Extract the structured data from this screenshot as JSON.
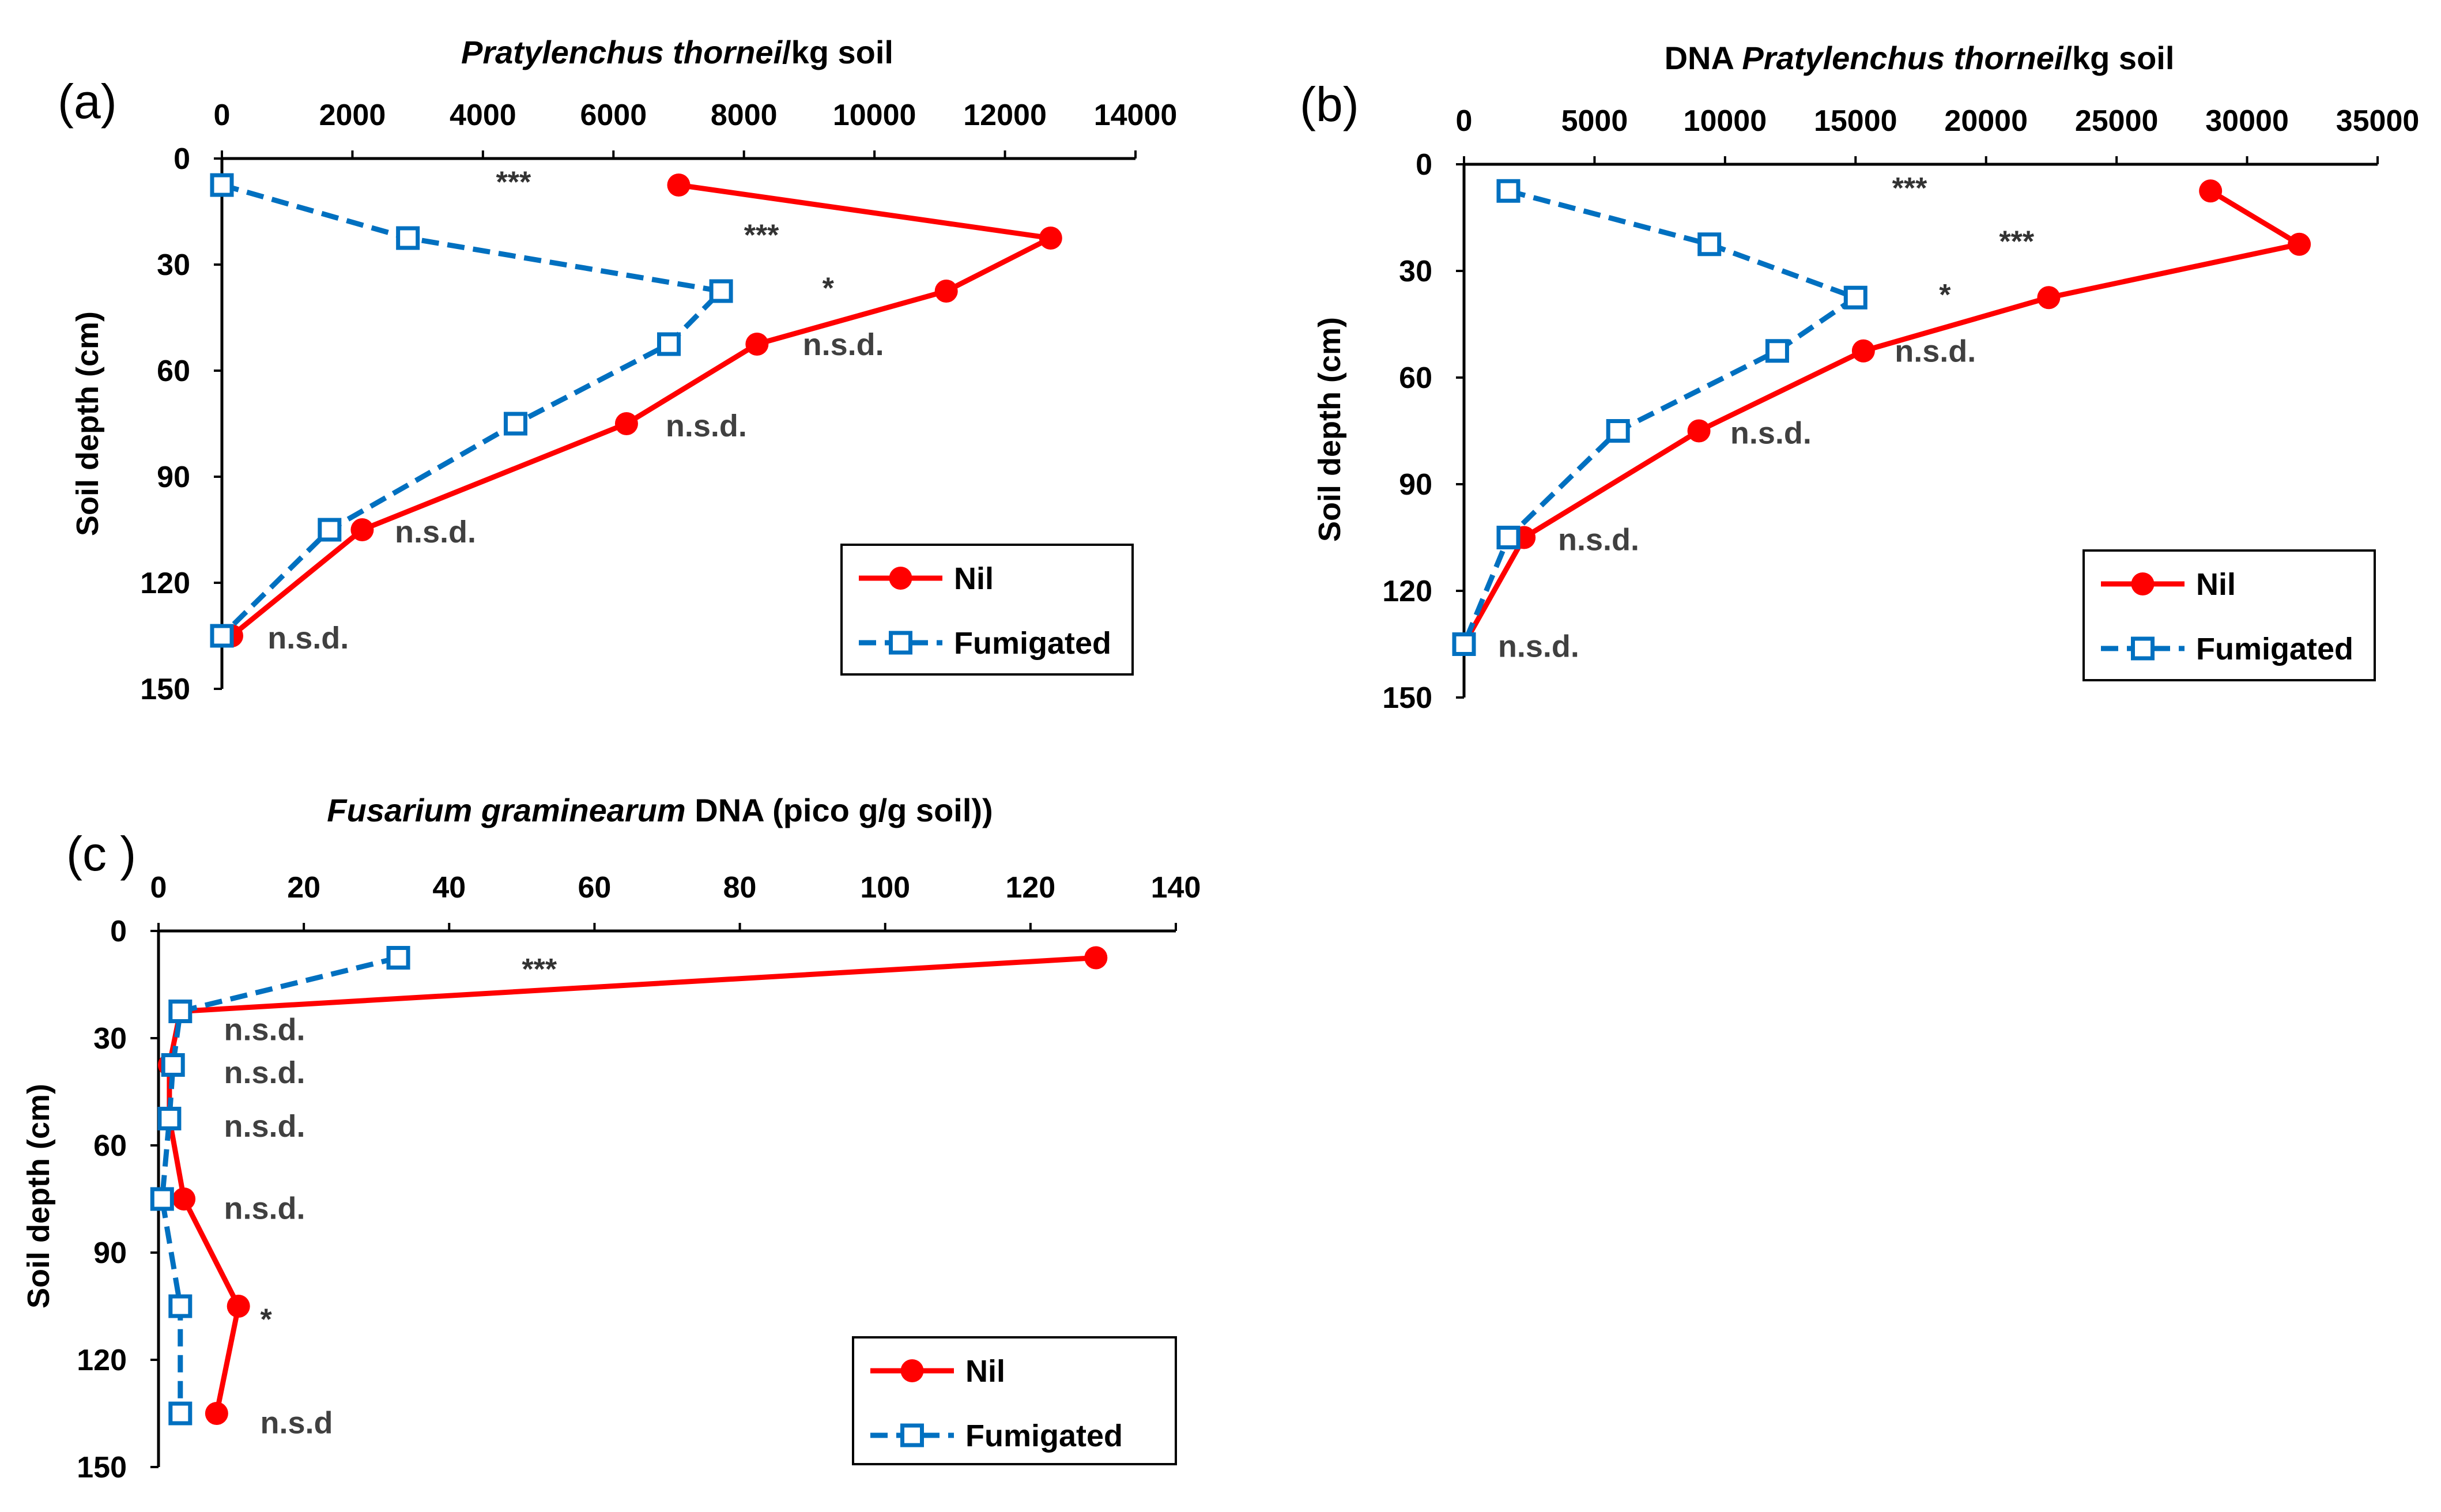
{
  "colors": {
    "nil": "#ff0000",
    "fumigated": "#0070c0",
    "axis": "#000000",
    "annot": "#404040"
  },
  "chart_data": [
    {
      "panel": "(a)",
      "type": "line",
      "title_parts": [
        {
          "text": "Pratylenchus thornei",
          "italic": true
        },
        {
          "text": "/kg soil",
          "italic": false
        }
      ],
      "xlabel_position": "top",
      "ylabel": "Soil depth (cm)",
      "xlim": [
        0,
        14000
      ],
      "xticks": [
        0,
        2000,
        4000,
        6000,
        8000,
        10000,
        12000,
        14000
      ],
      "ylim": [
        0,
        150
      ],
      "yticks": [
        0,
        30,
        60,
        90,
        120,
        150
      ],
      "legend_position": "bottom-right",
      "series": [
        {
          "name": "Nil",
          "style": "solid",
          "marker": "filled-circle",
          "points": [
            {
              "x": 7000,
              "y": 7.5
            },
            {
              "x": 12700,
              "y": 22.5
            },
            {
              "x": 11100,
              "y": 37.5
            },
            {
              "x": 8200,
              "y": 52.5
            },
            {
              "x": 6200,
              "y": 75
            },
            {
              "x": 2150,
              "y": 105
            },
            {
              "x": 150,
              "y": 135
            }
          ]
        },
        {
          "name": "Fumigated",
          "style": "dashed",
          "marker": "open-square",
          "points": [
            {
              "x": 0,
              "y": 7.5
            },
            {
              "x": 2850,
              "y": 22.5
            },
            {
              "x": 7650,
              "y": 37.5
            },
            {
              "x": 6850,
              "y": 52.5
            },
            {
              "x": 4500,
              "y": 75
            },
            {
              "x": 1650,
              "y": 105
            },
            {
              "x": 0,
              "y": 135
            }
          ]
        }
      ],
      "annotations": [
        {
          "text": "***",
          "x": 4200,
          "y": 5
        },
        {
          "text": "***",
          "x": 8000,
          "y": 20
        },
        {
          "text": "*",
          "x": 9200,
          "y": 35
        },
        {
          "text": "n.s.d.",
          "x": 8900,
          "y": 52
        },
        {
          "text": "n.s.d.",
          "x": 6800,
          "y": 75
        },
        {
          "text": "n.s.d.",
          "x": 2650,
          "y": 105
        },
        {
          "text": "n.s.d.",
          "x": 700,
          "y": 135
        }
      ]
    },
    {
      "panel": "(b)",
      "type": "line",
      "title_parts": [
        {
          "text": "DNA ",
          "italic": false
        },
        {
          "text": "Pratylenchus thornei",
          "italic": true
        },
        {
          "text": "/kg soil",
          "italic": false
        }
      ],
      "xlabel_position": "top",
      "ylabel": "Soil depth (cm)",
      "xlim": [
        0,
        35000
      ],
      "xticks": [
        0,
        5000,
        10000,
        15000,
        20000,
        25000,
        30000,
        35000
      ],
      "ylim": [
        0,
        150
      ],
      "yticks": [
        0,
        30,
        60,
        90,
        120,
        150
      ],
      "legend_position": "bottom-right",
      "series": [
        {
          "name": "Nil",
          "style": "solid",
          "marker": "filled-circle",
          "points": [
            {
              "x": 28600,
              "y": 7.5
            },
            {
              "x": 32000,
              "y": 22.5
            },
            {
              "x": 22400,
              "y": 37.5
            },
            {
              "x": 15300,
              "y": 52.5
            },
            {
              "x": 9000,
              "y": 75
            },
            {
              "x": 2300,
              "y": 105
            },
            {
              "x": 0,
              "y": 135
            }
          ]
        },
        {
          "name": "Fumigated",
          "style": "dashed",
          "marker": "open-square",
          "points": [
            {
              "x": 1700,
              "y": 7.5
            },
            {
              "x": 9400,
              "y": 22.5
            },
            {
              "x": 15000,
              "y": 37.5
            },
            {
              "x": 12000,
              "y": 52.5
            },
            {
              "x": 5900,
              "y": 75
            },
            {
              "x": 1700,
              "y": 105
            },
            {
              "x": 0,
              "y": 135
            }
          ]
        }
      ],
      "annotations": [
        {
          "text": "***",
          "x": 16400,
          "y": 5
        },
        {
          "text": "***",
          "x": 20500,
          "y": 20
        },
        {
          "text": "*",
          "x": 18200,
          "y": 35
        },
        {
          "text": "n.s.d.",
          "x": 16500,
          "y": 52
        },
        {
          "text": "n.s.d.",
          "x": 10200,
          "y": 75
        },
        {
          "text": "n.s.d.",
          "x": 3600,
          "y": 105
        },
        {
          "text": "n.s.d.",
          "x": 1300,
          "y": 135
        }
      ]
    },
    {
      "panel": "(c )",
      "type": "line",
      "title_parts": [
        {
          "text": "Fusarium graminearum",
          "italic": true
        },
        {
          "text": " DNA  (pico g/g soil))",
          "italic": false
        }
      ],
      "xlabel_position": "top",
      "ylabel": "Soil depth (cm)",
      "xlim": [
        0,
        140
      ],
      "xticks": [
        0,
        20,
        40,
        60,
        80,
        100,
        120,
        140
      ],
      "ylim": [
        0,
        150
      ],
      "yticks": [
        0,
        30,
        60,
        90,
        120,
        150
      ],
      "legend_position": "bottom-right",
      "series": [
        {
          "name": "Nil",
          "style": "solid",
          "marker": "filled-circle",
          "points": [
            {
              "x": 129,
              "y": 7.5
            },
            {
              "x": 3,
              "y": 22.5
            },
            {
              "x": 1.5,
              "y": 37.5
            },
            {
              "x": 1.5,
              "y": 52.5
            },
            {
              "x": 3.5,
              "y": 75
            },
            {
              "x": 11,
              "y": 105
            },
            {
              "x": 8,
              "y": 135
            }
          ]
        },
        {
          "name": "Fumigated",
          "style": "dashed",
          "marker": "open-square",
          "points": [
            {
              "x": 33,
              "y": 7.5
            },
            {
              "x": 3,
              "y": 22.5
            },
            {
              "x": 2,
              "y": 37.5
            },
            {
              "x": 1.5,
              "y": 52.5
            },
            {
              "x": 0.5,
              "y": 75
            },
            {
              "x": 3,
              "y": 105
            },
            {
              "x": 3,
              "y": 135
            }
          ]
        }
      ],
      "annotations": [
        {
          "text": "***",
          "x": 50,
          "y": 9
        },
        {
          "text": "n.s.d.",
          "x": 9,
          "y": 27
        },
        {
          "text": "n.s.d.",
          "x": 9,
          "y": 39
        },
        {
          "text": "n.s.d.",
          "x": 9,
          "y": 54
        },
        {
          "text": "n.s.d.",
          "x": 9,
          "y": 77
        },
        {
          "text": "*",
          "x": 14,
          "y": 107
        },
        {
          "text": "n.s.d",
          "x": 14,
          "y": 137
        }
      ]
    }
  ]
}
